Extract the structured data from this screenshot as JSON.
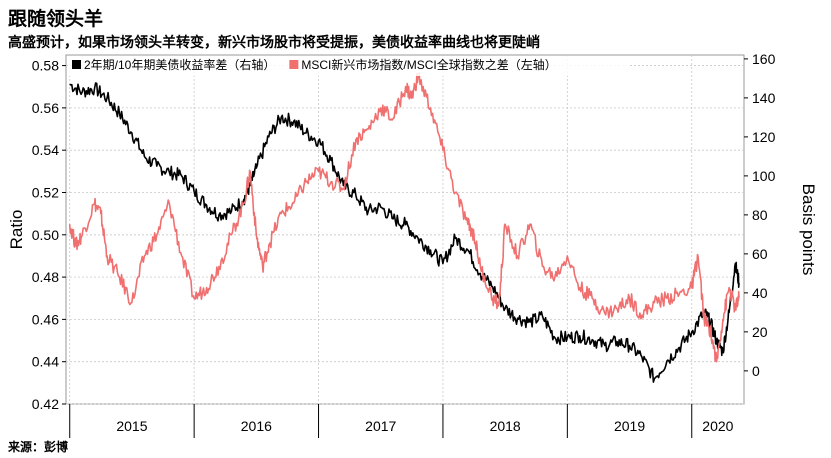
{
  "header": {
    "title": "跟随领头羊",
    "subtitle": "高盛预计，如果市场领头羊转变，新兴市场股市将受提振，美债收益率曲线也将更陡峭"
  },
  "footer": {
    "source": "来源：彭博"
  },
  "colors": {
    "black_series": "#000000",
    "red_series": "#f07070",
    "grid": "#c8c8c8"
  },
  "chart_data": {
    "type": "line",
    "title": "",
    "ylabel_left": "Ratio",
    "ylabel_right": "Basis points",
    "xlim": [
      2014.97,
      2020.42
    ],
    "ylim_left": [
      0.42,
      0.585
    ],
    "ylim_right": [
      -17,
      162
    ],
    "yticks_left": [
      "0.58",
      "0.56",
      "0.54",
      "0.52",
      "0.50",
      "0.48",
      "0.46",
      "0.44",
      "0.42"
    ],
    "yticks_right": [
      "160",
      "140",
      "120",
      "100",
      "80",
      "60",
      "40",
      "20",
      "0"
    ],
    "xticks": [
      "2015",
      "2016",
      "2017",
      "2018",
      "2019",
      "2020"
    ],
    "grid": true,
    "legend_position": "top",
    "series": [
      {
        "name": "2年期/10年期美债收益率差（右轴）",
        "axis": "right",
        "color": "#000000",
        "x": [
          2015.0,
          2015.1,
          2015.2,
          2015.3,
          2015.4,
          2015.5,
          2015.6,
          2015.7,
          2015.8,
          2015.9,
          2016.0,
          2016.1,
          2016.2,
          2016.3,
          2016.4,
          2016.45,
          2016.5,
          2016.6,
          2016.7,
          2016.8,
          2016.9,
          2017.0,
          2017.1,
          2017.2,
          2017.3,
          2017.4,
          2017.5,
          2017.6,
          2017.7,
          2017.8,
          2017.9,
          2018.0,
          2018.1,
          2018.2,
          2018.3,
          2018.4,
          2018.5,
          2018.6,
          2018.7,
          2018.8,
          2018.9,
          2019.0,
          2019.1,
          2019.2,
          2019.3,
          2019.4,
          2019.5,
          2019.6,
          2019.7,
          2019.8,
          2019.9,
          2020.0,
          2020.1,
          2020.15,
          2020.2,
          2020.25,
          2020.3,
          2020.35,
          2020.38
        ],
        "values": [
          147,
          143,
          145,
          140,
          132,
          122,
          110,
          105,
          102,
          100,
          92,
          85,
          80,
          82,
          88,
          95,
          104,
          120,
          130,
          128,
          122,
          118,
          108,
          95,
          90,
          82,
          84,
          78,
          75,
          68,
          62,
          55,
          68,
          62,
          50,
          43,
          32,
          27,
          25,
          28,
          17,
          17,
          18,
          16,
          13,
          15,
          13,
          7,
          -4,
          5,
          12,
          20,
          30,
          25,
          15,
          10,
          30,
          55,
          45
        ],
        "note": ""
      },
      {
        "name": "MSCI新兴市场指数/MSCI全球指数之差（左轴）",
        "axis": "left",
        "color": "#f07070",
        "x": [
          2015.0,
          2015.05,
          2015.1,
          2015.2,
          2015.25,
          2015.3,
          2015.4,
          2015.5,
          2015.6,
          2015.7,
          2015.8,
          2015.9,
          2016.0,
          2016.1,
          2016.2,
          2016.3,
          2016.4,
          2016.45,
          2016.5,
          2016.55,
          2016.6,
          2016.7,
          2016.8,
          2016.9,
          2017.0,
          2017.1,
          2017.2,
          2017.3,
          2017.4,
          2017.5,
          2017.6,
          2017.7,
          2017.75,
          2017.8,
          2017.9,
          2018.0,
          2018.1,
          2018.2,
          2018.25,
          2018.3,
          2018.4,
          2018.45,
          2018.5,
          2018.6,
          2018.7,
          2018.8,
          2018.9,
          2019.0,
          2019.1,
          2019.2,
          2019.3,
          2019.4,
          2019.5,
          2019.6,
          2019.7,
          2019.8,
          2019.9,
          2020.0,
          2020.05,
          2020.1,
          2020.15,
          2020.2,
          2020.25,
          2020.3,
          2020.35,
          2020.38
        ],
        "values": [
          0.505,
          0.495,
          0.5,
          0.515,
          0.51,
          0.49,
          0.48,
          0.468,
          0.49,
          0.5,
          0.515,
          0.49,
          0.47,
          0.475,
          0.485,
          0.5,
          0.515,
          0.53,
          0.5,
          0.485,
          0.495,
          0.51,
          0.515,
          0.525,
          0.53,
          0.525,
          0.522,
          0.545,
          0.55,
          0.56,
          0.555,
          0.57,
          0.565,
          0.575,
          0.56,
          0.54,
          0.52,
          0.505,
          0.5,
          0.485,
          0.47,
          0.467,
          0.505,
          0.49,
          0.505,
          0.485,
          0.48,
          0.49,
          0.475,
          0.47,
          0.463,
          0.465,
          0.47,
          0.462,
          0.468,
          0.47,
          0.472,
          0.475,
          0.49,
          0.46,
          0.455,
          0.44,
          0.46,
          0.475,
          0.465,
          0.47
        ]
      }
    ]
  }
}
